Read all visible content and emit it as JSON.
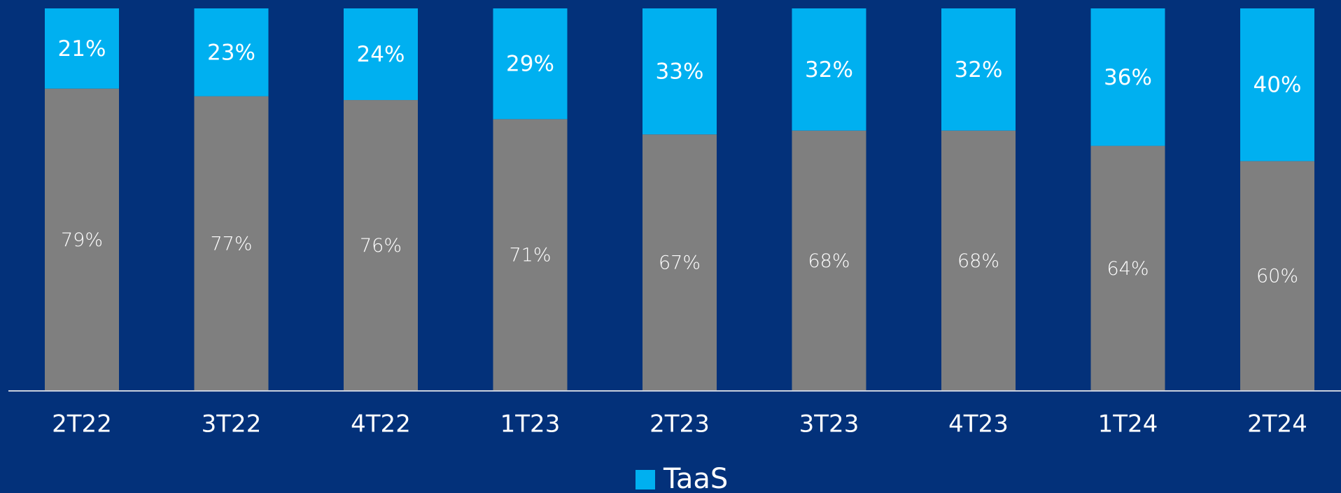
{
  "chart_data": {
    "type": "stacked_bar",
    "categories": [
      "2T22",
      "3T22",
      "4T22",
      "1T23",
      "2T23",
      "3T23",
      "4T23",
      "1T24",
      "2T24"
    ],
    "series": [
      {
        "color": "#7f7f7f",
        "values": [
          79,
          77,
          76,
          71,
          67,
          68,
          68,
          64,
          60
        ],
        "value_labels": [
          "79%",
          "77%",
          "76%",
          "71%",
          "67%",
          "68%",
          "68%",
          "64%",
          "60%"
        ]
      },
      {
        "name": "TaaS",
        "color": "#00b0f0",
        "values": [
          21,
          23,
          24,
          29,
          33,
          32,
          32,
          36,
          40
        ],
        "value_labels": [
          "21%",
          "23%",
          "24%",
          "29%",
          "33%",
          "32%",
          "32%",
          "36%",
          "40%"
        ]
      }
    ],
    "ylim": [
      0,
      100
    ],
    "legend": "bottom"
  }
}
